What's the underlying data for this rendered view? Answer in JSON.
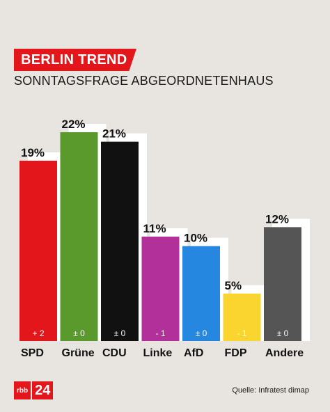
{
  "header": {
    "title": "BERLIN TREND",
    "subtitle": "SONNTAGSFRAGE ABGEORDNETENHAUS"
  },
  "footer": {
    "logo_left": "rbb",
    "logo_right": "24",
    "source": "Quelle: Infratest dimap"
  },
  "chart_data": {
    "type": "bar",
    "title": "BERLIN TREND",
    "subtitle": "SONNTAGSFRAGE ABGEORDNETENHAUS",
    "categories": [
      "SPD",
      "Grüne",
      "CDU",
      "Linke",
      "AfD",
      "FDP",
      "Andere"
    ],
    "values": [
      19,
      22,
      21,
      11,
      10,
      5,
      12
    ],
    "value_labels": [
      "19%",
      "22%",
      "21%",
      "11%",
      "10%",
      "5%",
      "12%"
    ],
    "changes": [
      "+ 2",
      "± 0",
      "± 0",
      "- 1",
      "± 0",
      "- 1",
      "± 0"
    ],
    "colors": [
      "#e3161b",
      "#5a9a2d",
      "#111111",
      "#b1309a",
      "#2587e0",
      "#fbd52f",
      "#555555"
    ],
    "change_text_colors": [
      "#ffffff",
      "#ffffff",
      "#ffffff",
      "#ffffff",
      "#ffffff",
      "#ffffff",
      "#ffffff"
    ],
    "shadow_color": "#ffffff",
    "ylim": [
      0,
      22
    ],
    "grid": false,
    "xlabel": "",
    "ylabel": ""
  }
}
